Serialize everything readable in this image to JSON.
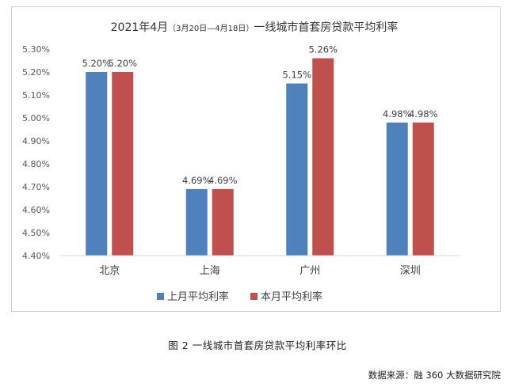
{
  "chart_data": {
    "type": "bar",
    "title_main_left": "2021年4月",
    "title_sub": "（3月20日—4月18日）",
    "title_main_right": "一线城市首套房贷款平均利率",
    "categories": [
      "北京",
      "上海",
      "广州",
      "深圳"
    ],
    "series": [
      {
        "name": "上月平均利率",
        "color": "#4f81bd",
        "values": [
          5.2,
          4.69,
          5.15,
          4.98
        ],
        "labels": [
          "5.20%",
          "4.69%",
          "5.15%",
          "4.98%"
        ]
      },
      {
        "name": "本月平均利率",
        "color": "#c0504d",
        "values": [
          5.2,
          4.69,
          5.26,
          4.98
        ],
        "labels": [
          "5.20%",
          "4.69%",
          "5.26%",
          "4.98%"
        ]
      }
    ],
    "yticks": [
      "4.40%",
      "4.50%",
      "4.60%",
      "4.70%",
      "4.80%",
      "4.90%",
      "5.00%",
      "5.10%",
      "5.20%",
      "5.30%"
    ],
    "ylim": [
      4.4,
      5.3
    ],
    "legend_position": "bottom",
    "grid": false
  },
  "caption": "图 2 一线城市首套房贷款平均利率环比",
  "source": "数据来源：融 360 大数据研究院"
}
